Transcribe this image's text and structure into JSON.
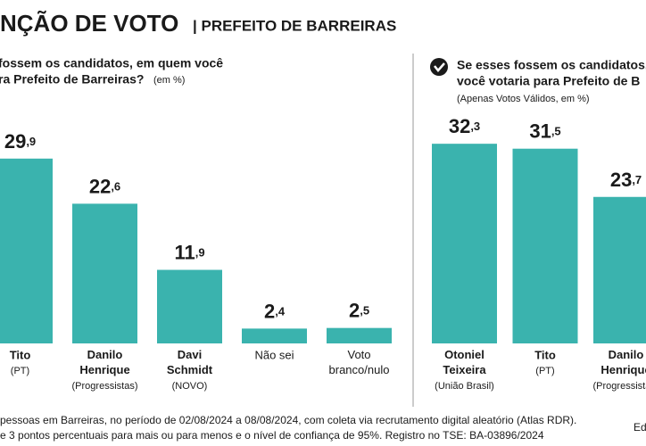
{
  "header": {
    "title": "NÇÃO DE VOTO",
    "subtitle": "| PREFEITO DE BARREIRAS"
  },
  "chart_data": [
    {
      "type": "bar",
      "question": [
        "fossem os candidatos, em quem você",
        "ra Prefeito de Barreiras?"
      ],
      "note": "(em %)",
      "categories": [
        "Tito",
        "Danilo Henrique",
        "Davi Schmidt",
        "Não sei",
        "Voto branco/nulo"
      ],
      "parties": [
        "(PT)",
        "(Progressistas)",
        "(NOVO)",
        null,
        null
      ],
      "values": [
        29.9,
        22.6,
        11.9,
        2.4,
        2.5
      ],
      "value_labels": [
        "29,9",
        "22,6",
        "11,9",
        "2,4",
        "2,5"
      ],
      "color": "#3ab3ae"
    },
    {
      "type": "bar",
      "question": [
        "Se esses fossem os candidatos,",
        "você votaria para Prefeito de B"
      ],
      "note": "(Apenas Votos Válidos, em %)",
      "categories": [
        "Otoniel Teixeira",
        "Tito",
        "Danilo Henrique"
      ],
      "parties": [
        "(União Brasil)",
        "(PT)",
        "(Progressistas)"
      ],
      "values": [
        32.3,
        31.5,
        23.7
      ],
      "value_labels": [
        "32,3",
        "31,5",
        "23,7"
      ],
      "color": "#3ab3ae"
    }
  ],
  "footer": [
    "pessoas em Barreiras, no período de 02/08/2024 a 08/08/2024, com coleta via recrutamento digital aleatório (Atlas RDR).",
    "e 3 pontos percentuais para mais ou para menos e o nível de confiança de 95%. Registro no TSE: BA-03896/2024"
  ],
  "credit": "Ed"
}
